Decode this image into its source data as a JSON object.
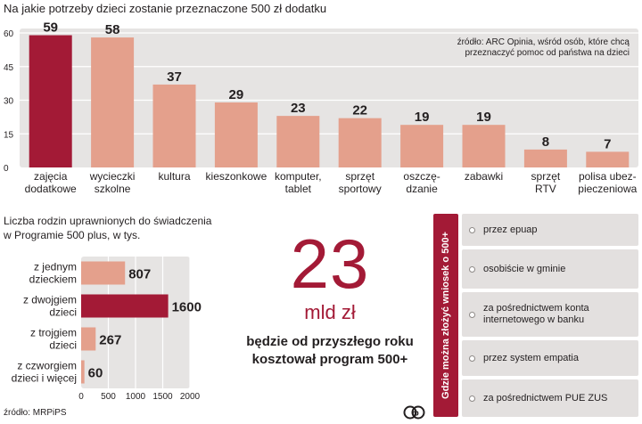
{
  "chart_data": [
    {
      "type": "bar",
      "title": "Na jakie potrzeby dzieci zostanie przeznaczone 500 zł dodatku",
      "source_note": "źródło: ARC Opinia, wśród osób, które chcą przeznaczyć pomoc od państwa na dzieci",
      "categories": [
        [
          "zajęcia",
          "dodatkowe"
        ],
        [
          "wycieczki",
          "szkolne"
        ],
        [
          "kultura"
        ],
        [
          "kieszonkowe"
        ],
        [
          "komputer,",
          "tablet"
        ],
        [
          "sprzęt",
          "sportowy"
        ],
        [
          "oszczę-",
          "dzanie"
        ],
        [
          "zabawki"
        ],
        [
          "sprzęt",
          "RTV"
        ],
        [
          "polisa ubez-",
          "pieczeniowa"
        ]
      ],
      "values": [
        59,
        58,
        37,
        29,
        23,
        22,
        19,
        19,
        8,
        7
      ],
      "highlight_index": 0,
      "yticks": [
        0,
        15,
        30,
        45,
        60
      ],
      "ylim": [
        0,
        62
      ],
      "grid": true,
      "colors": {
        "bar": "#e4a08c",
        "highlight": "#a31a36",
        "panel": "#e6e4e3",
        "grid": "#ffffff"
      }
    },
    {
      "type": "bar",
      "orientation": "horizontal",
      "title_lines": [
        "Liczba rodzin uprawnionych do świadczenia",
        "w Programie  500 plus, w tys."
      ],
      "categories": [
        [
          "z jednym",
          "dzieckiem"
        ],
        [
          "z dwojgiem",
          "dzieci"
        ],
        [
          "z trojgiem",
          "dzieci"
        ],
        [
          "z czworgiem",
          "dzieci i więcej"
        ]
      ],
      "values": [
        807,
        1600,
        267,
        60
      ],
      "highlight_index": 1,
      "xticks": [
        0,
        500,
        1000,
        1500,
        2000
      ],
      "xlim": [
        0,
        2000
      ],
      "grid": true,
      "source": "źródło: MRPiPS",
      "colors": {
        "bar": "#e4a08c",
        "highlight": "#a31a36",
        "panel": "#e6e4e3",
        "grid": "#ffffff"
      }
    }
  ],
  "cost": {
    "number": "23",
    "unit": "mld zł",
    "caption": "będzie od przyszłego roku kosztował program 500+"
  },
  "methods": {
    "side_label": "Gdzie można złożyć wniosek o 500+",
    "items": [
      "przez epuap",
      "osobiście w gminie",
      "za pośrednictwem konta internetowego w banku",
      "przez system empatia",
      "za pośrednictwem PUE ZUS"
    ]
  },
  "copyright_mark": "cp"
}
